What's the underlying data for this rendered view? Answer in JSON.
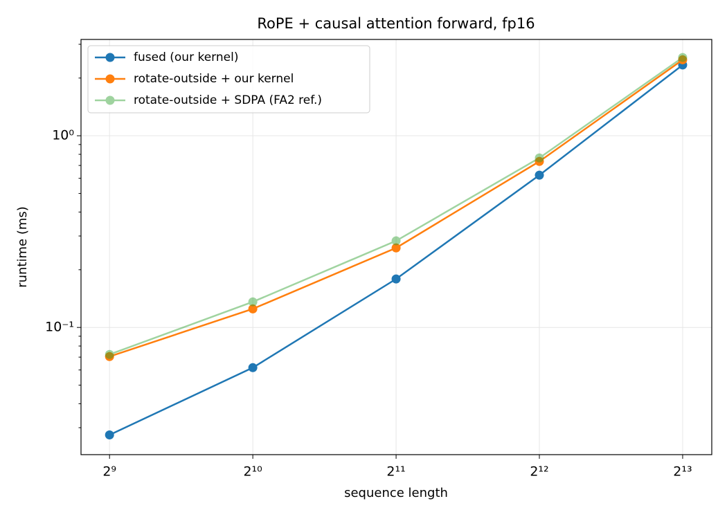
{
  "chart_data": {
    "type": "line",
    "title": "RoPE + causal attention forward, fp16",
    "x_label": "sequence length",
    "y_label": "runtime (ms)",
    "x": [
      512,
      1024,
      2048,
      4096,
      8192
    ],
    "series": [
      {
        "name": "fused (our kernel)",
        "color": "#1f77b4",
        "alpha": 1,
        "values": [
          0.0275,
          0.0617,
          0.179,
          0.623,
          2.34
        ]
      },
      {
        "name": "rotate-outside + our kernel",
        "color": "#ff7f0e",
        "alpha": 1,
        "values": [
          0.0705,
          0.125,
          0.26,
          0.735,
          2.49
        ]
      },
      {
        "name": "rotate-outside + SDPA (FA2 ref.)",
        "color": "#2ca02c",
        "alpha": 0.45,
        "values": [
          0.0723,
          0.136,
          0.283,
          0.766,
          2.56
        ]
      }
    ],
    "xscale": "log",
    "yscale": "log",
    "xlim": [
      446,
      9431
    ],
    "ylim": [
      0.0217,
      3.18
    ],
    "xticks": [
      {
        "value": 512,
        "label": "2⁹"
      },
      {
        "value": 1024,
        "label": "2¹⁰"
      },
      {
        "value": 2048,
        "label": "2¹¹"
      },
      {
        "value": 4096,
        "label": "2¹²"
      },
      {
        "value": 8192,
        "label": "2¹³"
      }
    ],
    "yticks": [
      {
        "value": 0.1,
        "label": "10⁻¹"
      },
      {
        "value": 1,
        "label": "10⁰"
      }
    ],
    "yminor_ticks": [
      0.03,
      0.04,
      0.05,
      0.06,
      0.07,
      0.08,
      0.09,
      0.2,
      0.3,
      0.4,
      0.5,
      0.6,
      0.7,
      0.8,
      0.9,
      2,
      3
    ],
    "grid": true,
    "legend": "upper-left"
  }
}
